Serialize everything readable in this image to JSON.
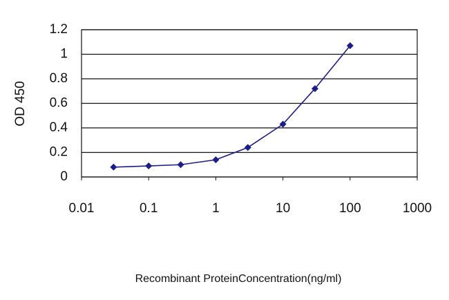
{
  "chart_data": {
    "type": "line",
    "x_label": "Recombinant ProteinConcentration(ng/ml)",
    "y_label": "OD 450",
    "x": [
      0.03,
      0.1,
      0.3,
      1,
      3,
      10,
      30,
      100
    ],
    "values": [
      0.08,
      0.09,
      0.1,
      0.14,
      0.24,
      0.43,
      0.72,
      1.07
    ],
    "color": "#1c1c8a",
    "xscale": "log",
    "xlim": [
      0.01,
      1000
    ],
    "xticks": [
      0.01,
      0.1,
      1,
      10,
      100,
      1000
    ],
    "ylim": [
      0,
      1.2
    ],
    "yticks": [
      0,
      0.2,
      0.4,
      0.6,
      0.8,
      1,
      1.2
    ],
    "grid": true
  }
}
